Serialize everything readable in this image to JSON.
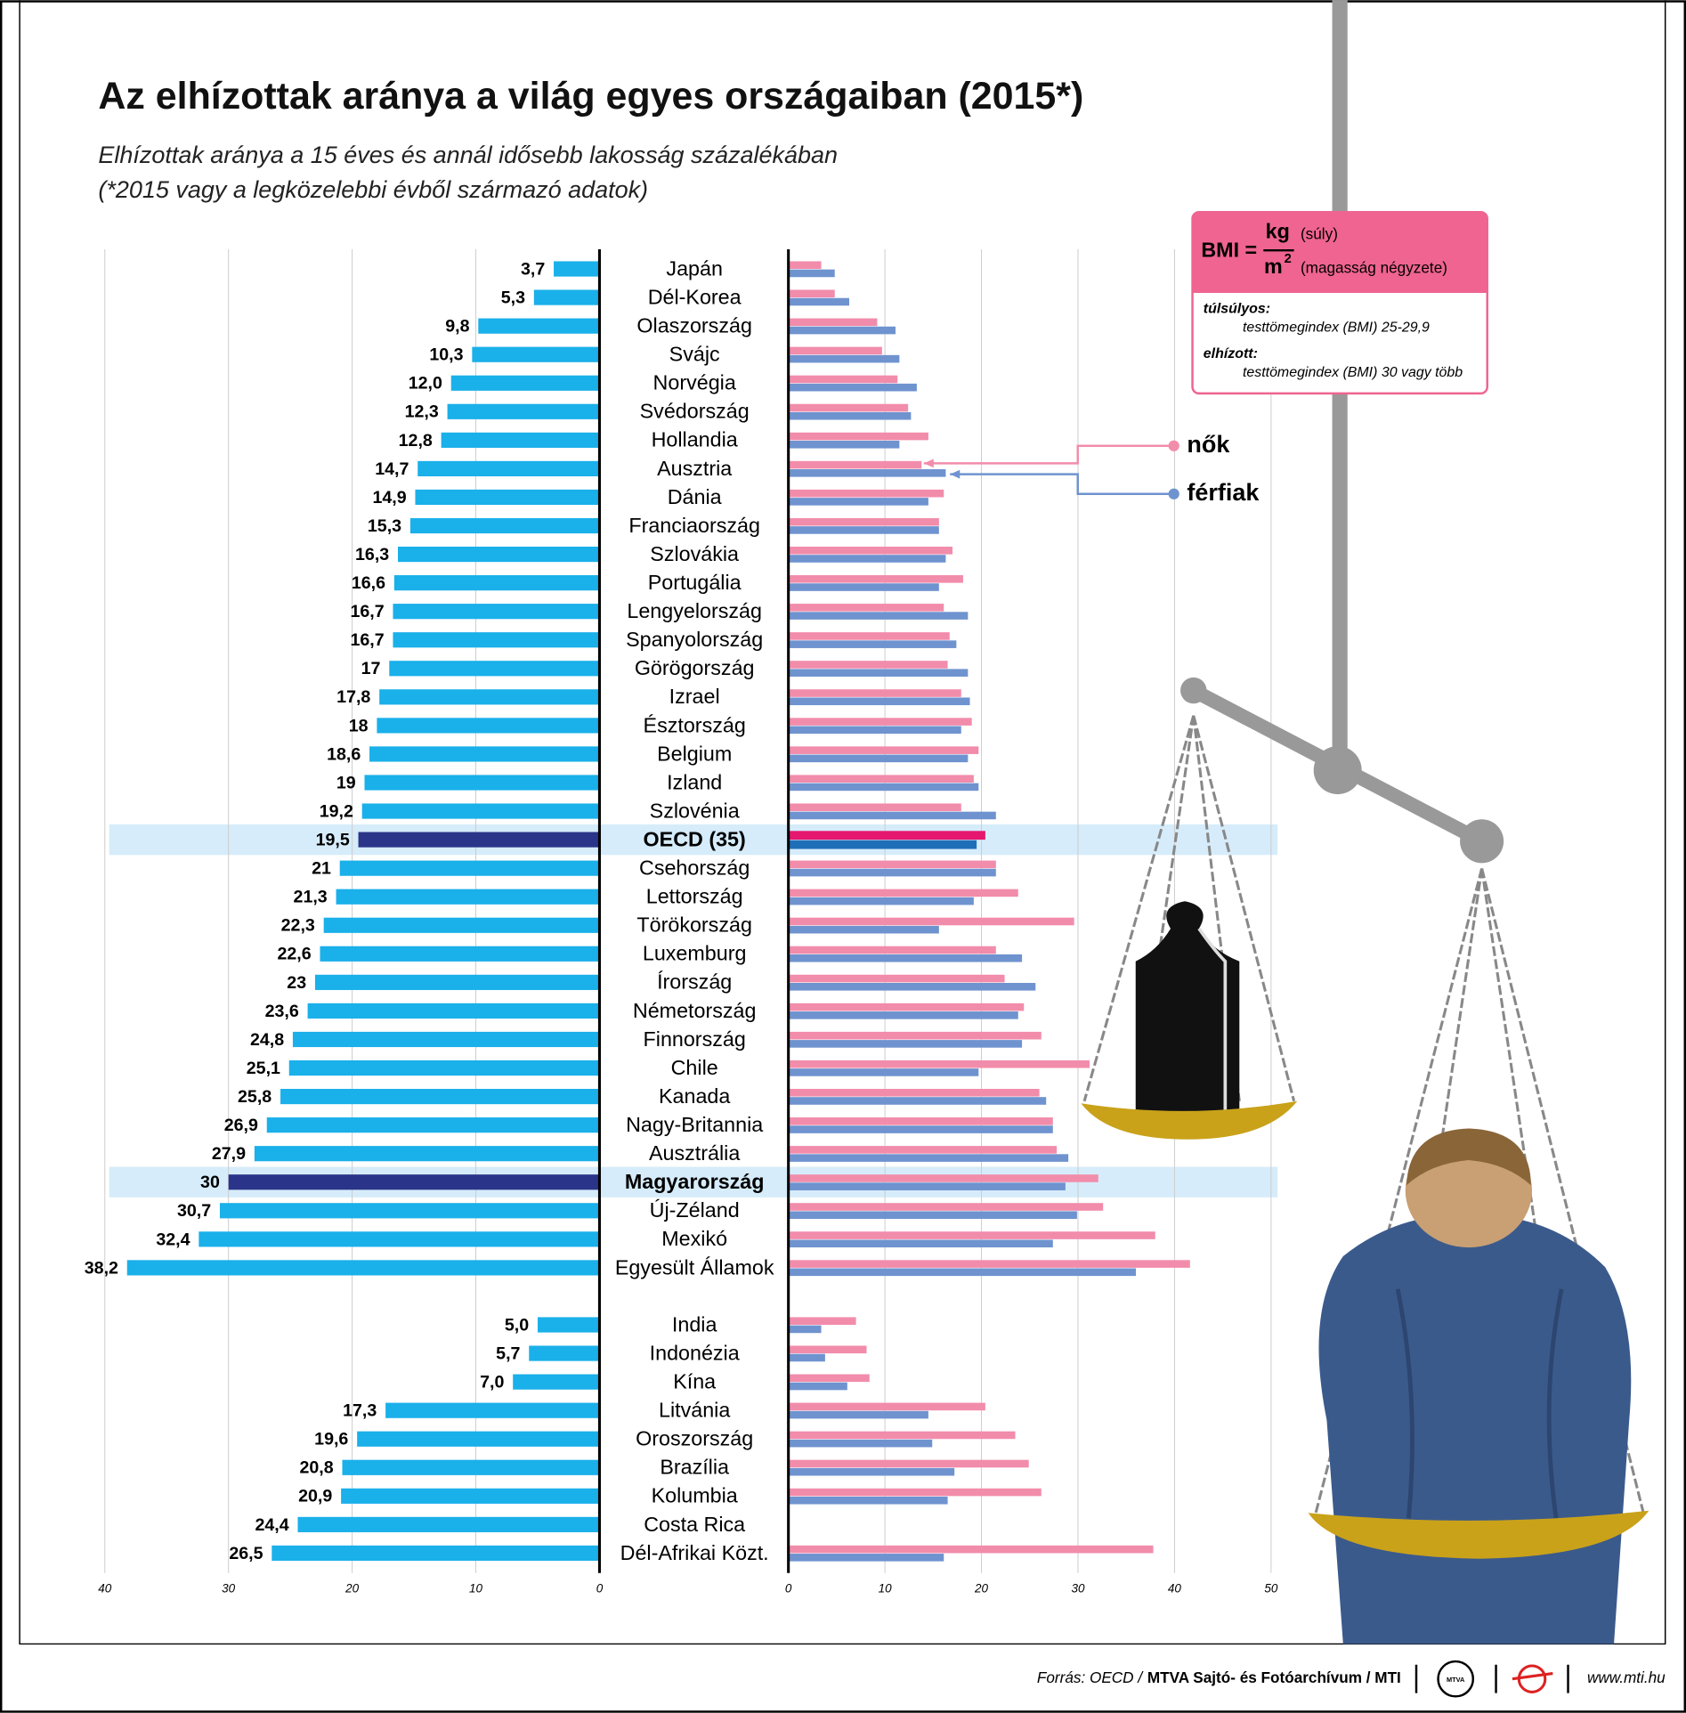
{
  "chart_data": [
    {
      "type": "bar",
      "orientation": "horizontal",
      "title": "Az elhízottak aránya a világ egyes országaiban (2015*)",
      "subtitle": [
        "Elhízottak aránya a 15 éves és annál idősebb lakosság százalékában",
        "(*2015 vagy a legközelebbi évből származó adatok)"
      ],
      "categories": [
        "Japán",
        "Dél-Korea",
        "Olaszország",
        "Svájc",
        "Norvégia",
        "Svédország",
        "Hollandia",
        "Ausztria",
        "Dánia",
        "Franciaország",
        "Szlovákia",
        "Portugália",
        "Lengyelország",
        "Spanyolország",
        "Görögország",
        "Izrael",
        "Észtország",
        "Belgium",
        "Izland",
        "Szlovénia",
        "OECD (35)",
        "Csehország",
        "Lettország",
        "Törökország",
        "Luxemburg",
        "Írország",
        "Németország",
        "Finnország",
        "Chile",
        "Kanada",
        "Nagy-Britannia",
        "Ausztrália",
        "Magyarország",
        "Új-Zéland",
        "Mexikó",
        "Egyesült Államok",
        null,
        "India",
        "Indonézia",
        "Kína",
        "Litvánia",
        "Oroszország",
        "Brazília",
        "Kolumbia",
        "Costa Rica",
        "Dél-Afrikai Közt."
      ],
      "values": [
        3.7,
        5.3,
        9.8,
        10.3,
        12.0,
        12.3,
        12.8,
        14.7,
        14.9,
        15.3,
        16.3,
        16.6,
        16.7,
        16.7,
        17,
        17.8,
        18,
        18.6,
        19,
        19.2,
        19.5,
        21,
        21.3,
        22.3,
        22.6,
        23,
        23.6,
        24.8,
        25.1,
        25.8,
        26.9,
        27.9,
        30,
        30.7,
        32.4,
        38.2,
        null,
        5.0,
        5.7,
        7.0,
        17.3,
        19.6,
        20.8,
        20.9,
        24.4,
        26.5
      ],
      "value_labels": [
        "3,7",
        "5,3",
        "9,8",
        "10,3",
        "12,0",
        "12,3",
        "12,8",
        "14,7",
        "14,9",
        "15,3",
        "16,3",
        "16,6",
        "16,7",
        "16,7",
        "17",
        "17,8",
        "18",
        "18,6",
        "19",
        "19,2",
        "19,5",
        "21",
        "21,3",
        "22,3",
        "22,6",
        "23",
        "23,6",
        "24,8",
        "25,1",
        "25,8",
        "26,9",
        "27,9",
        "30",
        "30,7",
        "32,4",
        "38,2",
        null,
        "5,0",
        "5,7",
        "7,0",
        "17,3",
        "19,6",
        "20,8",
        "20,9",
        "24,4",
        "26,5"
      ],
      "color": "#1ab0ea",
      "highlight_color": "#2a3589",
      "highlight_rows": [
        20,
        32
      ],
      "band_color": "#d6ecfa",
      "xlim": [
        40,
        0
      ],
      "xticks": [
        40,
        30,
        20,
        10,
        0
      ],
      "grid": true
    },
    {
      "type": "bar",
      "orientation": "horizontal",
      "series": [
        {
          "name": "nők",
          "color": "#f28cab",
          "highlight_color": "#e6176e",
          "values": [
            3.4,
            4.8,
            9.2,
            9.7,
            11.3,
            12.4,
            14.5,
            13.8,
            16.1,
            15.6,
            17.0,
            18.1,
            16.1,
            16.7,
            16.5,
            17.9,
            19.0,
            19.7,
            19.2,
            17.9,
            20.4,
            21.5,
            23.8,
            29.6,
            21.5,
            22.4,
            24.4,
            26.2,
            31.2,
            26.0,
            27.4,
            27.8,
            32.1,
            32.6,
            38.0,
            41.6,
            null,
            7.0,
            8.1,
            8.4,
            20.4,
            23.5,
            24.9,
            26.2,
            null,
            37.8
          ]
        },
        {
          "name": "férfiak",
          "color": "#6f93cf",
          "highlight_color": "#1f6fb8",
          "values": [
            4.8,
            6.3,
            11.1,
            11.5,
            13.3,
            12.7,
            11.5,
            16.3,
            14.5,
            15.6,
            16.3,
            15.6,
            18.6,
            17.4,
            18.6,
            18.8,
            17.9,
            18.6,
            19.7,
            21.5,
            19.5,
            21.5,
            19.2,
            15.6,
            24.2,
            25.6,
            23.8,
            24.2,
            19.7,
            26.7,
            27.4,
            29.0,
            28.7,
            29.9,
            27.4,
            36.0,
            null,
            3.4,
            3.8,
            6.1,
            14.5,
            14.9,
            17.2,
            16.5,
            null,
            16.1
          ]
        }
      ],
      "highlight_rows": [
        20
      ],
      "xlim": [
        0,
        50
      ],
      "xticks": [
        0,
        10,
        20,
        30,
        40,
        50
      ],
      "grid": true
    }
  ],
  "bmi_box": {
    "lhs": "BMI =",
    "numerator": "kg",
    "numerator_note": "(súly)",
    "denominator": "m",
    "exponent": "2",
    "denominator_note": "(magasság négyzete)",
    "overweight_label": "túlsúlyos:",
    "overweight_text": "testtömegindex (BMI) 25-29,9",
    "obese_label": "elhízott:",
    "obese_text": "testtömegindex (BMI) 30 vagy több"
  },
  "footer": {
    "source": "Forrás: OECD /",
    "credit": "MTVA Sajtó- és Fotóarchívum / MTI",
    "logo": "MTVA",
    "url": "www.mti.hu"
  }
}
